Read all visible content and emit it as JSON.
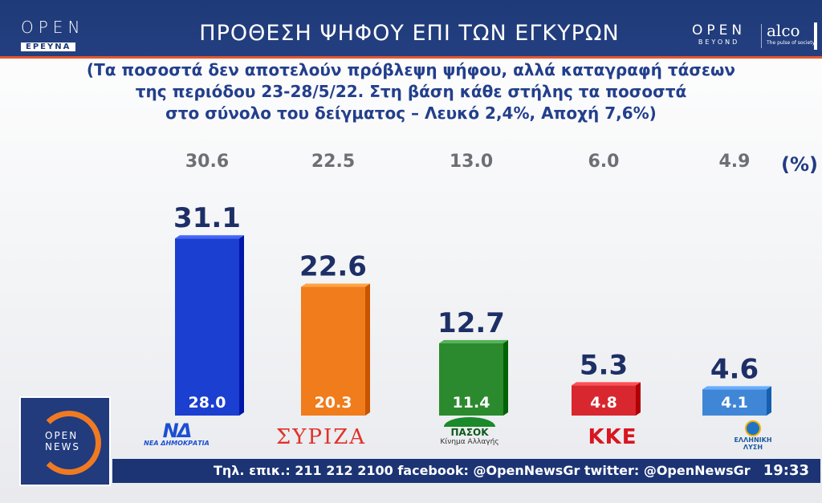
{
  "header": {
    "title": "ΠΡΟΘΕΣΗ ΨΗΦΟΥ ΕΠΙ ΤΩΝ ΕΓΚΥΡΩΝ",
    "logo_left_open": "OPEN",
    "logo_left_sub": "ΕΡΕΥΝΑ",
    "logo_right_open": "OPEN",
    "logo_right_sub": "BEYOND",
    "alco": "alco",
    "alco_tag": "The pulse of society"
  },
  "subtitle": {
    "lines": [
      "(Τα ποσοστά δεν αποτελούν πρόβλεψη ψήφου, αλλά καταγραφή τάσεων",
      "της περιόδου 23-28/5/22. Στη βάση κάθε στήλης τα ποσοστά",
      "στο σύνολο του δείγματος – Λευκό 2,4%, Αποχή 7,6%)"
    ]
  },
  "chart_data": {
    "type": "bar",
    "unit_label": "(%)",
    "categories": [
      "ΝΕΑ ΔΗΜΟΚΡΑΤΙΑ",
      "ΣΥΡΙΖΑ",
      "ΠΑΣΟΚ Κίνημα Αλλαγής",
      "ΚΚΕ",
      "ΕΛΛΗΝΙΚΗ ΛΥΣΗ"
    ],
    "colors": [
      "#1b3fd0",
      "#f07c1c",
      "#2b8a2e",
      "#d8272e",
      "#3f86d6"
    ],
    "series": [
      {
        "values": [
          31.1,
          22.6,
          12.7,
          5.3,
          4.6
        ]
      },
      {
        "values": [
          28.0,
          20.3,
          11.4,
          4.8,
          4.1
        ]
      },
      {
        "values": [
          30.6,
          22.5,
          13.0,
          6.0,
          4.9
        ]
      }
    ],
    "ylim": [
      0,
      32
    ]
  },
  "party_logos": {
    "nd_symbol": "ΝΔ",
    "nd_text": "ΝΕΑ ΔΗΜΟΚΡΑΤΙΑ",
    "syriza": "ΣΥΡΙΖΑ",
    "pasok_name": "ΠΑΣΟΚ",
    "pasok_sub": "Κίνημα Αλλαγής",
    "kke": "ΚΚΕ",
    "el_line1": "ΕΛΛΗΝΙΚΗ",
    "el_line2": "ΛΥΣΗ"
  },
  "badge": {
    "line1": "OPEN",
    "line2": "NEWS"
  },
  "ticker": {
    "text": "Τηλ. επικ.: 211 212 2100 facebook: @OpenNewsGr twitter: @OpenNewsGr",
    "clock": "19:33"
  }
}
